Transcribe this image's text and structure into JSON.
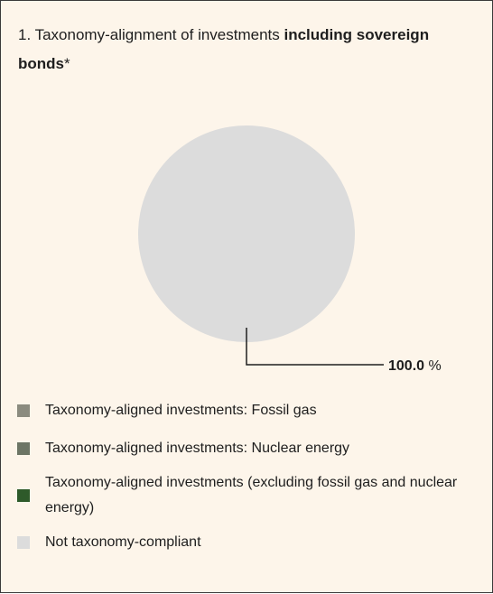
{
  "panel": {
    "title_prefix": "1. Taxonomy-alignment of investments ",
    "title_bold": "including sovereign bonds",
    "title_suffix": "*"
  },
  "chart_data": {
    "type": "pie",
    "categories": [
      "Taxonomy-aligned investments: Fossil gas",
      "Taxonomy-aligned investments: Nuclear energy",
      "Taxonomy-aligned investments (excluding fossil gas and nuclear energy)",
      "Not taxonomy-compliant"
    ],
    "values": [
      0,
      0,
      0,
      100.0
    ],
    "colors": [
      "#8b8b7f",
      "#6d7565",
      "#2e5a2a",
      "#dcdcdc"
    ],
    "data_labels": [
      "",
      "",
      "",
      "100.0 %"
    ],
    "title": "1. Taxonomy-alignment of investments including sovereign bonds*",
    "legend_position": "bottom"
  }
}
